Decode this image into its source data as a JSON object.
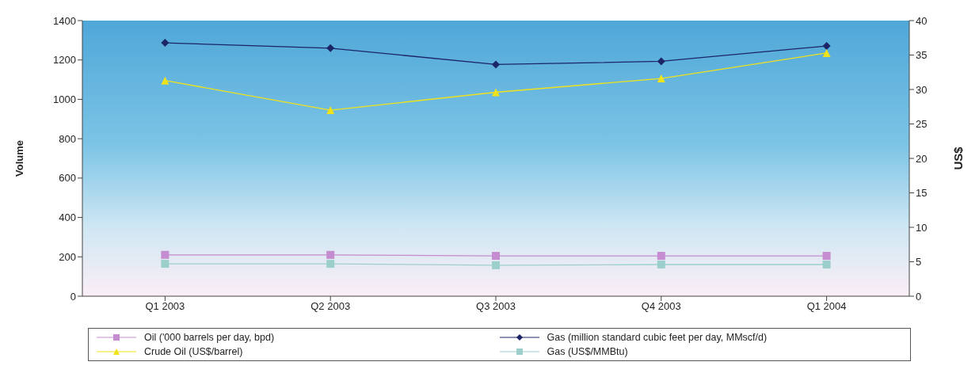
{
  "chart_data": {
    "type": "line",
    "categories": [
      "Q1 2003",
      "Q2 2003",
      "Q3 2003",
      "Q4 2003",
      "Q1 2004"
    ],
    "ylabel": "Volume",
    "y2label": "US$",
    "ylim": [
      0,
      1400
    ],
    "yticks": [
      0,
      200,
      400,
      600,
      800,
      1000,
      1200,
      1400
    ],
    "y2lim": [
      0,
      40
    ],
    "y2ticks": [
      0,
      5,
      10,
      15,
      20,
      25,
      30,
      35,
      40
    ],
    "legend": "bottom",
    "series": [
      {
        "name": "Oil ('000 barrels per day, bpd)",
        "color": "#c58ccf",
        "marker": "square",
        "values": [
          210,
          210,
          205,
          205,
          205
        ]
      },
      {
        "name": "Gas (million standard cubic feet per day, MMscf/d)",
        "color": "#1c2566",
        "marker": "diamond",
        "values": [
          1287,
          1260,
          1177,
          1193,
          1271
        ]
      },
      {
        "name": "Crude Oil (US$/barrel)",
        "color": "#f0e21a",
        "marker": "triangle",
        "axis": "y2",
        "values": [
          31.3,
          27.0,
          29.6,
          31.6,
          35.3
        ]
      },
      {
        "name": "Gas (US$/MMBtu)",
        "color": "#9ccfcc",
        "marker": "square",
        "axis": "y2",
        "values": [
          4.7,
          4.7,
          4.5,
          4.6,
          4.6
        ]
      }
    ]
  }
}
